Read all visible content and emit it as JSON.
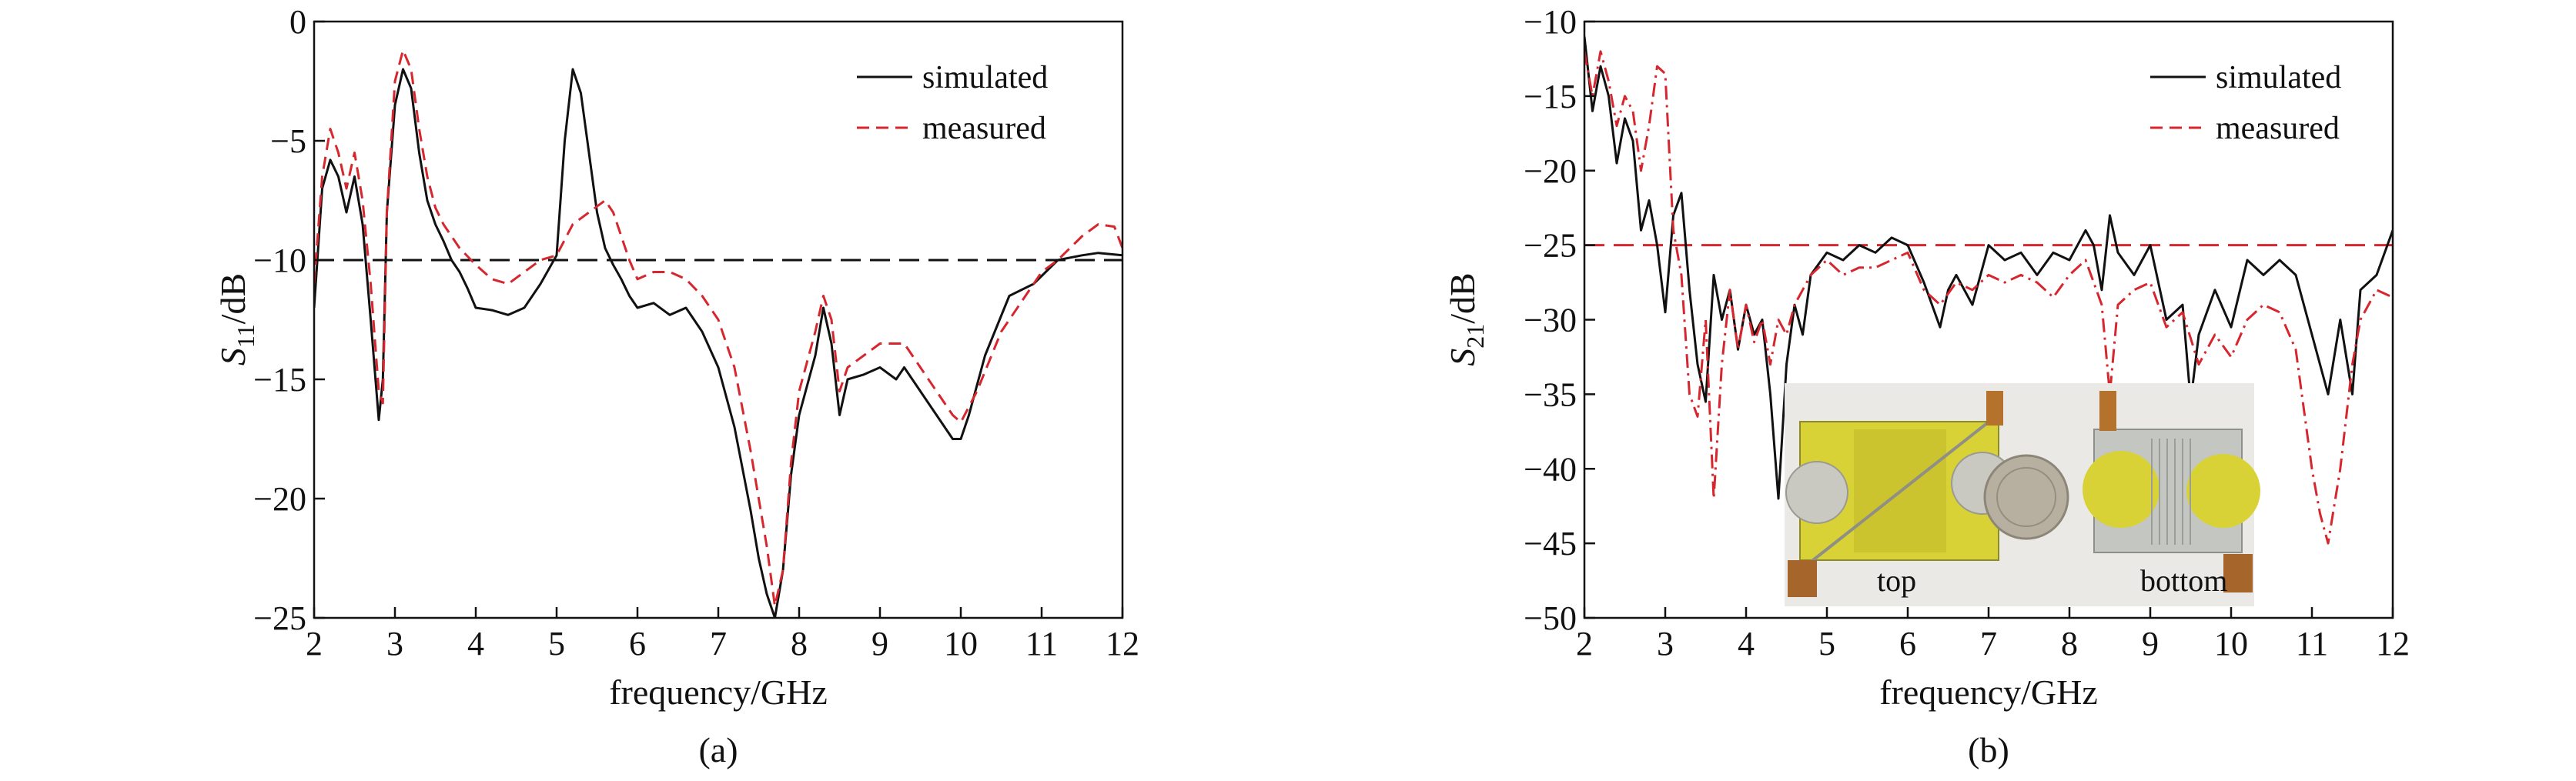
{
  "chart_data": [
    {
      "type": "line",
      "caption": "(a)",
      "xlabel": "frequency/GHz",
      "ylabel_main": "S",
      "ylabel_sub": "11",
      "ylabel_unit": "/dB",
      "xlim": [
        2,
        12
      ],
      "ylim": [
        -25,
        0
      ],
      "xticks": [
        "2",
        "3",
        "4",
        "5",
        "6",
        "7",
        "8",
        "9",
        "10",
        "11",
        "12"
      ],
      "yticks": [
        "0",
        "−5",
        "−10",
        "−15",
        "−20",
        "−25"
      ],
      "ytick_values": [
        0,
        -5,
        -10,
        -15,
        -20,
        -25
      ],
      "reference_line": {
        "y": -10,
        "style": "dashed",
        "color": "#111111"
      },
      "legend_position": "top-right",
      "series": [
        {
          "name": "simulated",
          "style": "solid",
          "color": "#111111",
          "x": [
            2.0,
            2.1,
            2.2,
            2.3,
            2.4,
            2.5,
            2.6,
            2.7,
            2.8,
            2.85,
            2.9,
            3.0,
            3.1,
            3.2,
            3.3,
            3.4,
            3.5,
            3.6,
            3.7,
            3.8,
            3.9,
            4.0,
            4.2,
            4.4,
            4.6,
            4.8,
            5.0,
            5.1,
            5.2,
            5.3,
            5.4,
            5.5,
            5.6,
            5.7,
            5.8,
            5.9,
            6.0,
            6.2,
            6.4,
            6.6,
            6.8,
            7.0,
            7.2,
            7.4,
            7.5,
            7.6,
            7.7,
            7.8,
            7.9,
            8.0,
            8.2,
            8.3,
            8.4,
            8.5,
            8.6,
            8.8,
            9.0,
            9.2,
            9.3,
            9.5,
            9.7,
            9.9,
            10.0,
            10.1,
            10.3,
            10.6,
            10.9,
            11.2,
            11.5,
            11.7,
            12.0
          ],
          "y": [
            -12.0,
            -7.0,
            -5.8,
            -6.5,
            -8.0,
            -6.5,
            -8.5,
            -12.5,
            -16.7,
            -15.0,
            -8.0,
            -3.5,
            -2.0,
            -2.8,
            -5.5,
            -7.5,
            -8.5,
            -9.2,
            -10.0,
            -10.5,
            -11.2,
            -12.0,
            -12.1,
            -12.3,
            -12.0,
            -11.0,
            -9.8,
            -5.0,
            -2.0,
            -3.0,
            -5.5,
            -8.0,
            -9.5,
            -10.2,
            -10.8,
            -11.5,
            -12.0,
            -11.8,
            -12.3,
            -12.0,
            -13.0,
            -14.5,
            -17.0,
            -20.5,
            -22.5,
            -24.0,
            -25.0,
            -23.0,
            -19.0,
            -16.5,
            -14.0,
            -12.0,
            -13.5,
            -16.5,
            -15.0,
            -14.8,
            -14.5,
            -15.0,
            -14.5,
            -15.5,
            -16.5,
            -17.5,
            -17.5,
            -16.5,
            -14.0,
            -11.5,
            -11.0,
            -10.0,
            -9.8,
            -9.7,
            -9.8
          ]
        },
        {
          "name": "measured",
          "style": "dashed",
          "color": "#d6262e",
          "x": [
            2.0,
            2.1,
            2.2,
            2.3,
            2.4,
            2.5,
            2.6,
            2.7,
            2.8,
            2.85,
            2.9,
            3.0,
            3.1,
            3.2,
            3.3,
            3.4,
            3.5,
            3.6,
            3.8,
            4.0,
            4.2,
            4.4,
            4.6,
            4.8,
            5.0,
            5.2,
            5.4,
            5.6,
            5.7,
            5.8,
            5.9,
            6.0,
            6.2,
            6.4,
            6.6,
            6.8,
            7.0,
            7.2,
            7.4,
            7.6,
            7.7,
            7.8,
            7.9,
            8.0,
            8.2,
            8.3,
            8.4,
            8.5,
            8.6,
            8.8,
            9.0,
            9.2,
            9.3,
            9.5,
            9.7,
            9.9,
            10.0,
            10.2,
            10.5,
            10.8,
            11.0,
            11.2,
            11.5,
            11.7,
            11.9,
            12.0
          ],
          "y": [
            -11.0,
            -6.5,
            -4.5,
            -5.5,
            -7.0,
            -5.5,
            -7.5,
            -11.0,
            -15.5,
            -16.0,
            -8.0,
            -2.5,
            -1.2,
            -2.0,
            -4.5,
            -6.5,
            -7.8,
            -8.5,
            -9.5,
            -10.2,
            -10.8,
            -11.0,
            -10.5,
            -10.0,
            -9.8,
            -8.5,
            -8.0,
            -7.5,
            -8.0,
            -9.0,
            -10.0,
            -10.8,
            -10.5,
            -10.5,
            -10.8,
            -11.5,
            -12.5,
            -14.5,
            -18.0,
            -22.0,
            -24.5,
            -23.0,
            -18.5,
            -15.5,
            -13.0,
            -11.5,
            -12.5,
            -15.5,
            -14.5,
            -14.0,
            -13.5,
            -13.5,
            -13.5,
            -14.5,
            -15.5,
            -16.5,
            -16.8,
            -15.5,
            -13.0,
            -11.5,
            -10.5,
            -10.0,
            -9.0,
            -8.5,
            -8.6,
            -9.5
          ]
        }
      ]
    },
    {
      "type": "line",
      "caption": "(b)",
      "xlabel": "frequency/GHz",
      "ylabel_main": "S",
      "ylabel_sub": "21",
      "ylabel_unit": "/dB",
      "xlim": [
        2,
        12
      ],
      "ylim": [
        -50,
        -10
      ],
      "xticks": [
        "2",
        "3",
        "4",
        "5",
        "6",
        "7",
        "8",
        "9",
        "10",
        "11",
        "12"
      ],
      "yticks": [
        "−10",
        "−15",
        "−20",
        "−25",
        "−30",
        "−35",
        "−40",
        "−45",
        "−50"
      ],
      "ytick_values": [
        -10,
        -15,
        -20,
        -25,
        -30,
        -35,
        -40,
        -45,
        -50
      ],
      "reference_line": {
        "y": -25,
        "style": "dashed",
        "color": "#d6262e"
      },
      "legend_position": "top-right",
      "inset_photo_labels": [
        "top",
        "bottom"
      ],
      "series": [
        {
          "name": "simulated",
          "style": "solid",
          "color": "#111111",
          "x": [
            2.0,
            2.1,
            2.2,
            2.3,
            2.4,
            2.5,
            2.6,
            2.7,
            2.8,
            2.9,
            3.0,
            3.1,
            3.2,
            3.3,
            3.4,
            3.5,
            3.6,
            3.7,
            3.8,
            3.9,
            4.0,
            4.1,
            4.2,
            4.3,
            4.4,
            4.5,
            4.6,
            4.7,
            4.8,
            5.0,
            5.2,
            5.4,
            5.6,
            5.8,
            6.0,
            6.2,
            6.4,
            6.5,
            6.6,
            6.8,
            7.0,
            7.2,
            7.4,
            7.6,
            7.8,
            8.0,
            8.2,
            8.3,
            8.4,
            8.5,
            8.6,
            8.8,
            9.0,
            9.2,
            9.4,
            9.5,
            9.6,
            9.8,
            10.0,
            10.2,
            10.4,
            10.6,
            10.8,
            11.0,
            11.2,
            11.35,
            11.5,
            11.6,
            11.8,
            12.0
          ],
          "y": [
            -11.0,
            -16.0,
            -13.0,
            -15.0,
            -19.5,
            -16.5,
            -18.0,
            -24.0,
            -22.0,
            -25.0,
            -29.5,
            -23.0,
            -21.5,
            -28.0,
            -33.0,
            -35.5,
            -27.0,
            -30.0,
            -28.0,
            -32.0,
            -29.0,
            -31.0,
            -30.0,
            -35.0,
            -42.0,
            -33.0,
            -29.0,
            -31.0,
            -27.0,
            -25.5,
            -26.0,
            -25.0,
            -25.5,
            -24.5,
            -25.0,
            -27.5,
            -30.5,
            -28.0,
            -27.0,
            -29.0,
            -25.0,
            -26.0,
            -25.5,
            -27.0,
            -25.5,
            -26.0,
            -24.0,
            -25.0,
            -28.0,
            -23.0,
            -25.5,
            -27.0,
            -25.0,
            -30.0,
            -29.0,
            -35.5,
            -31.0,
            -28.0,
            -30.5,
            -26.0,
            -27.0,
            -26.0,
            -27.0,
            -31.0,
            -35.0,
            -30.0,
            -35.0,
            -28.0,
            -27.0,
            -24.0
          ]
        },
        {
          "name": "measured",
          "style": "dashdot",
          "color": "#d6262e",
          "x": [
            2.0,
            2.1,
            2.2,
            2.3,
            2.4,
            2.5,
            2.6,
            2.7,
            2.8,
            2.9,
            3.0,
            3.1,
            3.2,
            3.3,
            3.4,
            3.5,
            3.6,
            3.7,
            3.8,
            3.9,
            4.0,
            4.1,
            4.2,
            4.3,
            4.4,
            4.5,
            4.6,
            4.7,
            4.8,
            5.0,
            5.2,
            5.4,
            5.6,
            5.8,
            6.0,
            6.2,
            6.4,
            6.6,
            6.8,
            7.0,
            7.2,
            7.4,
            7.6,
            7.8,
            8.0,
            8.2,
            8.4,
            8.5,
            8.6,
            8.8,
            9.0,
            9.2,
            9.4,
            9.6,
            9.8,
            10.0,
            10.2,
            10.4,
            10.6,
            10.8,
            10.9,
            11.0,
            11.1,
            11.2,
            11.35,
            11.5,
            11.6,
            11.8,
            12.0
          ],
          "y": [
            -12.0,
            -15.0,
            -12.0,
            -14.0,
            -17.0,
            -15.0,
            -16.0,
            -20.0,
            -17.0,
            -13.0,
            -13.5,
            -24.0,
            -27.0,
            -35.0,
            -36.5,
            -30.0,
            -42.0,
            -33.0,
            -28.0,
            -32.0,
            -29.0,
            -31.5,
            -30.0,
            -33.0,
            -30.0,
            -31.0,
            -29.0,
            -28.0,
            -27.0,
            -26.0,
            -27.0,
            -26.5,
            -26.5,
            -26.0,
            -25.5,
            -28.0,
            -29.0,
            -27.5,
            -28.0,
            -27.0,
            -27.5,
            -27.0,
            -27.5,
            -28.5,
            -27.0,
            -26.0,
            -29.0,
            -35.0,
            -29.0,
            -28.0,
            -27.5,
            -30.5,
            -29.5,
            -33.0,
            -31.0,
            -32.5,
            -30.0,
            -29.0,
            -29.5,
            -32.0,
            -36.0,
            -40.0,
            -43.0,
            -45.0,
            -40.0,
            -33.0,
            -30.0,
            -28.0,
            -28.5
          ]
        }
      ]
    }
  ]
}
